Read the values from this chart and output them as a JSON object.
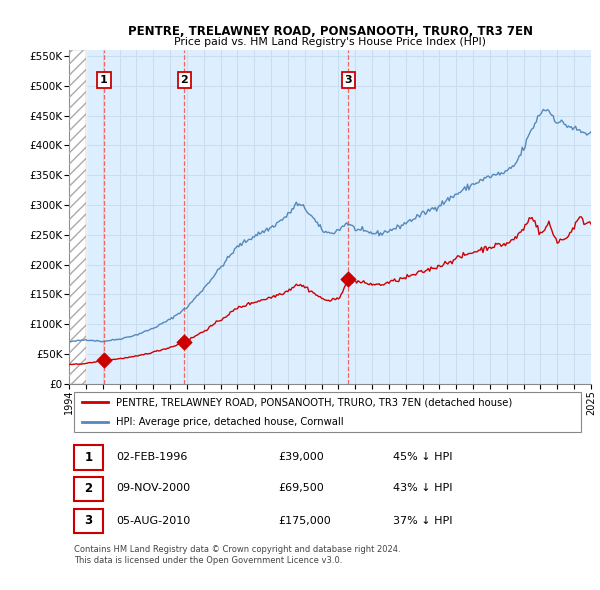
{
  "title": "PENTRE, TRELAWNEY ROAD, PONSANOOTH, TRURO, TR3 7EN",
  "subtitle": "Price paid vs. HM Land Registry's House Price Index (HPI)",
  "sale_points": [
    {
      "year": 1996.08,
      "price": 39000,
      "label": "1"
    },
    {
      "year": 2000.85,
      "price": 69500,
      "label": "2"
    },
    {
      "year": 2010.59,
      "price": 175000,
      "label": "3"
    }
  ],
  "vline_years": [
    1996.08,
    2000.85,
    2010.59
  ],
  "label_positions": [
    {
      "year": 1996.08,
      "price": 510000
    },
    {
      "year": 2000.85,
      "price": 510000
    },
    {
      "year": 2010.59,
      "price": 510000
    }
  ],
  "xlim": [
    1994,
    2025
  ],
  "ylim": [
    0,
    560000
  ],
  "yticks": [
    0,
    50000,
    100000,
    150000,
    200000,
    250000,
    300000,
    350000,
    400000,
    450000,
    500000,
    550000
  ],
  "xticks": [
    1994,
    1995,
    1996,
    1997,
    1998,
    1999,
    2000,
    2001,
    2002,
    2003,
    2004,
    2005,
    2006,
    2007,
    2008,
    2009,
    2010,
    2011,
    2012,
    2013,
    2014,
    2015,
    2016,
    2017,
    2018,
    2019,
    2020,
    2021,
    2022,
    2023,
    2024,
    2025
  ],
  "hpi_color": "#5588bb",
  "sale_color": "#cc0000",
  "vline_color": "#ee6666",
  "grid_color": "#c8ddf0",
  "background_color": "#ddeeff",
  "hatch_region_end": 1995.0,
  "legend_label_sale": "PENTRE, TRELAWNEY ROAD, PONSANOOTH, TRURO, TR3 7EN (detached house)",
  "legend_label_hpi": "HPI: Average price, detached house, Cornwall",
  "table_data": [
    {
      "num": "1",
      "date": "02-FEB-1996",
      "price": "£39,000",
      "pct": "45% ↓ HPI"
    },
    {
      "num": "2",
      "date": "09-NOV-2000",
      "price": "£69,500",
      "pct": "43% ↓ HPI"
    },
    {
      "num": "3",
      "date": "05-AUG-2010",
      "price": "£175,000",
      "pct": "37% ↓ HPI"
    }
  ],
  "footnote": "Contains HM Land Registry data © Crown copyright and database right 2024.\nThis data is licensed under the Open Government Licence v3.0."
}
